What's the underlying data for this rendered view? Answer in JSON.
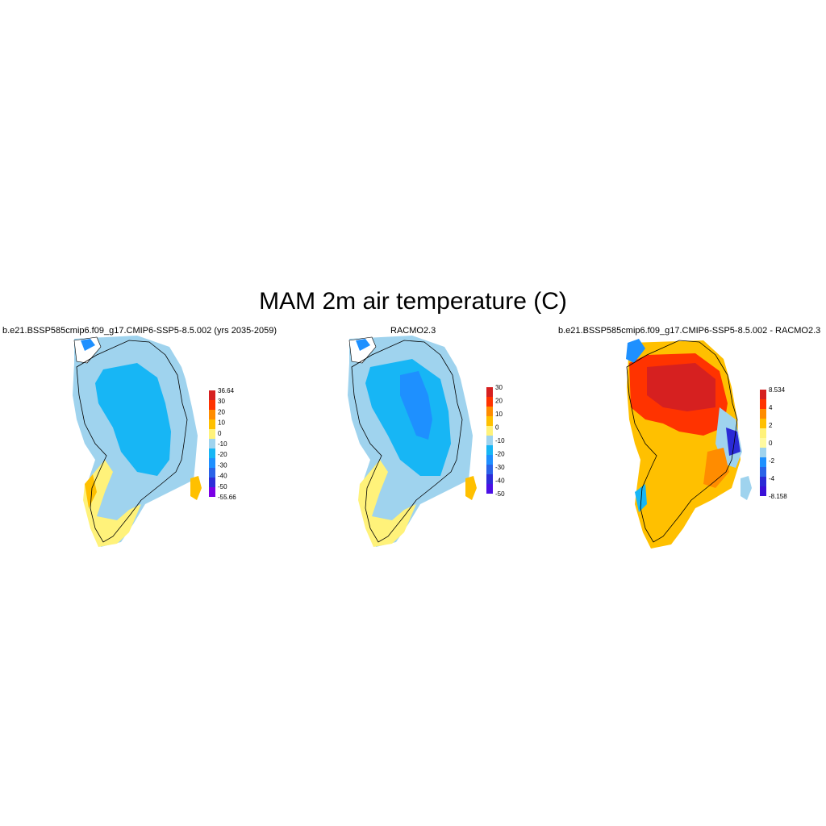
{
  "title": "MAM 2m air temperature (C)",
  "panels": [
    {
      "title": "b.e21.BSSP585cmip6.f09_g17.CMIP6-SSP5-8.5.002 (yrs 2035-2059)",
      "colorbar": {
        "colors": [
          "#7b00e6",
          "#2d2dd9",
          "#2a63e8",
          "#1e90ff",
          "#17b6f5",
          "#9fd3ee",
          "#fff27a",
          "#ffc000",
          "#ff8c00",
          "#ff3300",
          "#d62020"
        ],
        "labels": [
          "-55.66",
          "-50",
          "-40",
          "-30",
          "-20",
          "-10",
          "0",
          "10",
          "20",
          "30",
          "36.64"
        ]
      }
    },
    {
      "title": "RACMO2.3",
      "colorbar": {
        "colors": [
          "#4b10e6",
          "#2d2dd9",
          "#2a63e8",
          "#1e90ff",
          "#17b6f5",
          "#9fd3ee",
          "#fff27a",
          "#ffc000",
          "#ff8c00",
          "#ff3300",
          "#d62020"
        ],
        "labels": [
          "-50",
          "-40",
          "-30",
          "-20",
          "-10",
          "0",
          "10",
          "20",
          "30"
        ]
      }
    },
    {
      "title": "b.e21.BSSP585cmip6.f09_g17.CMIP6-SSP5-8.5.002 - RACMO2.3",
      "colorbar": {
        "colors": [
          "#3a10d8",
          "#2a2ad6",
          "#2a63e8",
          "#1e90ff",
          "#9fd3ee",
          "#fffaa0",
          "#fff27a",
          "#ffc000",
          "#ff8c00",
          "#ff3300",
          "#d62020"
        ],
        "labels": [
          "-8.158",
          "-4",
          "-2",
          "0",
          "2",
          "4",
          "8.534"
        ]
      }
    }
  ]
}
